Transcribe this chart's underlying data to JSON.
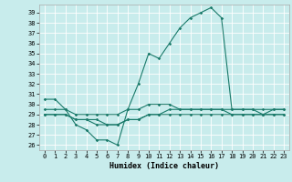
{
  "title": "",
  "xlabel": "Humidex (Indice chaleur)",
  "bg_color": "#c8ecec",
  "line_color": "#1a7a6a",
  "grid_color": "#ffffff",
  "xlim": [
    -0.5,
    23.5
  ],
  "ylim": [
    25.5,
    39.8
  ],
  "yticks": [
    26,
    27,
    28,
    29,
    30,
    31,
    32,
    33,
    34,
    35,
    36,
    37,
    38,
    39
  ],
  "xticks": [
    0,
    1,
    2,
    3,
    4,
    5,
    6,
    7,
    8,
    9,
    10,
    11,
    12,
    13,
    14,
    15,
    16,
    17,
    18,
    19,
    20,
    21,
    22,
    23
  ],
  "lines": [
    [
      30.5,
      30.5,
      29.5,
      28.0,
      27.5,
      26.5,
      26.5,
      26.0,
      29.5,
      32.0,
      35.0,
      34.5,
      36.0,
      37.5,
      38.5,
      39.0,
      39.5,
      38.5,
      29.5,
      29.5,
      29.5,
      29.0,
      29.5,
      29.5
    ],
    [
      29.5,
      29.5,
      29.5,
      29.0,
      29.0,
      29.0,
      29.0,
      29.0,
      29.5,
      29.5,
      30.0,
      30.0,
      30.0,
      29.5,
      29.5,
      29.5,
      29.5,
      29.5,
      29.5,
      29.5,
      29.5,
      29.5,
      29.5,
      29.5
    ],
    [
      29.0,
      29.0,
      29.0,
      28.5,
      28.5,
      28.5,
      28.0,
      28.0,
      28.5,
      28.5,
      29.0,
      29.0,
      29.5,
      29.5,
      29.5,
      29.5,
      29.5,
      29.5,
      29.0,
      29.0,
      29.0,
      29.0,
      29.0,
      29.0
    ],
    [
      29.0,
      29.0,
      29.0,
      28.5,
      28.5,
      28.0,
      28.0,
      28.0,
      28.5,
      28.5,
      29.0,
      29.0,
      29.0,
      29.0,
      29.0,
      29.0,
      29.0,
      29.0,
      29.0,
      29.0,
      29.0,
      29.0,
      29.0,
      29.0
    ]
  ]
}
